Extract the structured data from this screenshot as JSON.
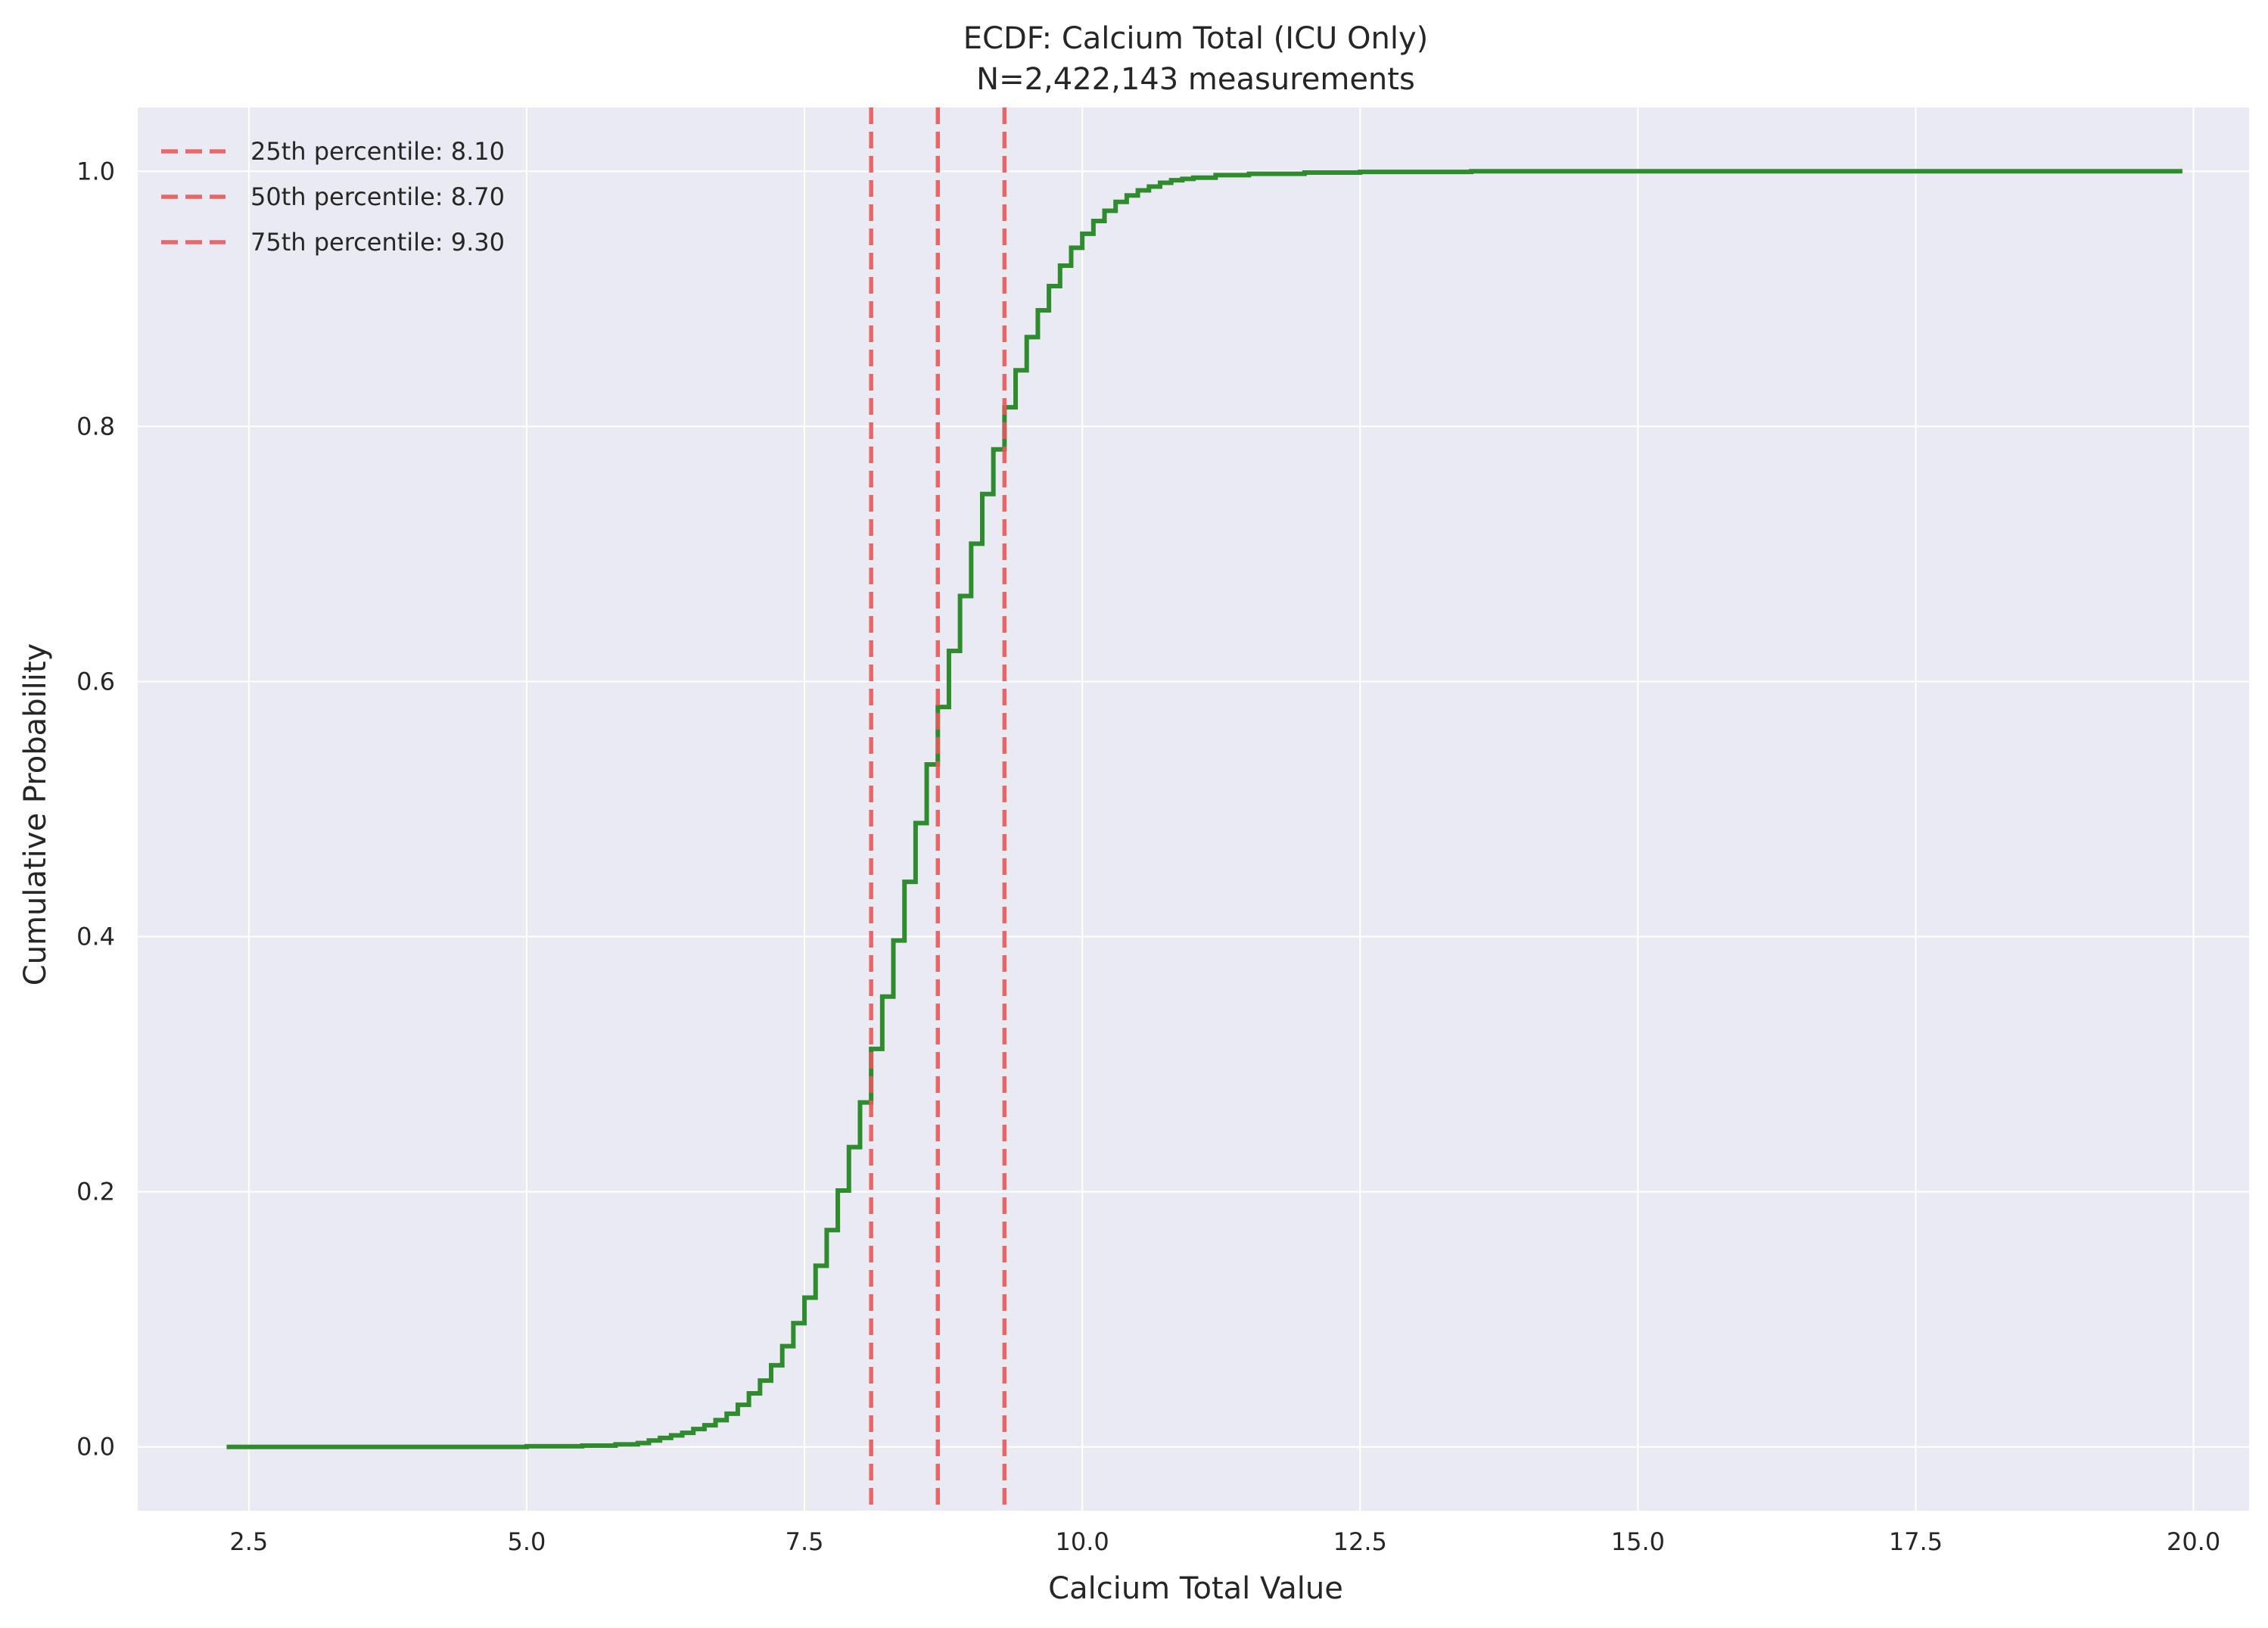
{
  "chart_data": {
    "type": "line",
    "title": "ECDF: Calcium Total (ICU Only)",
    "subtitle": "N=2,422,143 measurements",
    "xlabel": "Calcium Total Value",
    "ylabel": "Cumulative Probability",
    "xlim": [
      1.5,
      20.5
    ],
    "ylim": [
      -0.05,
      1.05
    ],
    "x_ticks": [
      2.5,
      5.0,
      7.5,
      10.0,
      12.5,
      15.0,
      17.5,
      20.0
    ],
    "x_tick_labels": [
      "2.5",
      "5.0",
      "7.5",
      "10.0",
      "12.5",
      "15.0",
      "17.5",
      "20.0"
    ],
    "y_ticks": [
      0.0,
      0.2,
      0.4,
      0.6,
      0.8,
      1.0
    ],
    "y_tick_labels": [
      "0.0",
      "0.2",
      "0.4",
      "0.6",
      "0.8",
      "1.0"
    ],
    "grid": true,
    "legend_position": "top-left",
    "colors": {
      "ecdf": "#2e8b2e",
      "percentile": "#e8575a",
      "plot_bg": "#eaeaf2",
      "grid": "#ffffff"
    },
    "series": [
      {
        "kind": "step",
        "x": [
          2.3,
          5.0,
          5.5,
          5.8,
          6.0,
          6.1,
          6.2,
          6.3,
          6.4,
          6.5,
          6.6,
          6.7,
          6.8,
          6.9,
          7.0,
          7.1,
          7.2,
          7.3,
          7.4,
          7.5,
          7.6,
          7.7,
          7.8,
          7.9,
          8.0,
          8.1,
          8.2,
          8.3,
          8.4,
          8.5,
          8.6,
          8.7,
          8.8,
          8.9,
          9.0,
          9.1,
          9.2,
          9.3,
          9.4,
          9.5,
          9.6,
          9.7,
          9.8,
          9.9,
          10.0,
          10.1,
          10.2,
          10.3,
          10.4,
          10.5,
          10.6,
          10.7,
          10.8,
          10.9,
          11.0,
          11.2,
          11.5,
          12.0,
          12.5,
          13.5,
          19.9
        ],
        "y": [
          0.0,
          0.0005,
          0.001,
          0.002,
          0.003,
          0.005,
          0.007,
          0.009,
          0.011,
          0.014,
          0.017,
          0.021,
          0.026,
          0.033,
          0.042,
          0.052,
          0.064,
          0.079,
          0.097,
          0.117,
          0.142,
          0.17,
          0.201,
          0.235,
          0.27,
          0.312,
          0.353,
          0.397,
          0.443,
          0.489,
          0.535,
          0.58,
          0.624,
          0.667,
          0.708,
          0.747,
          0.782,
          0.815,
          0.844,
          0.87,
          0.891,
          0.91,
          0.926,
          0.94,
          0.951,
          0.961,
          0.969,
          0.976,
          0.981,
          0.985,
          0.988,
          0.991,
          0.993,
          0.994,
          0.995,
          0.997,
          0.998,
          0.999,
          0.9995,
          1.0,
          1.0
        ]
      },
      {
        "kind": "vline",
        "name": "25th percentile: 8.10",
        "x": 8.1
      },
      {
        "kind": "vline",
        "name": "50th percentile: 8.70",
        "x": 8.7
      },
      {
        "kind": "vline",
        "name": "75th percentile: 9.30",
        "x": 9.3
      }
    ]
  }
}
